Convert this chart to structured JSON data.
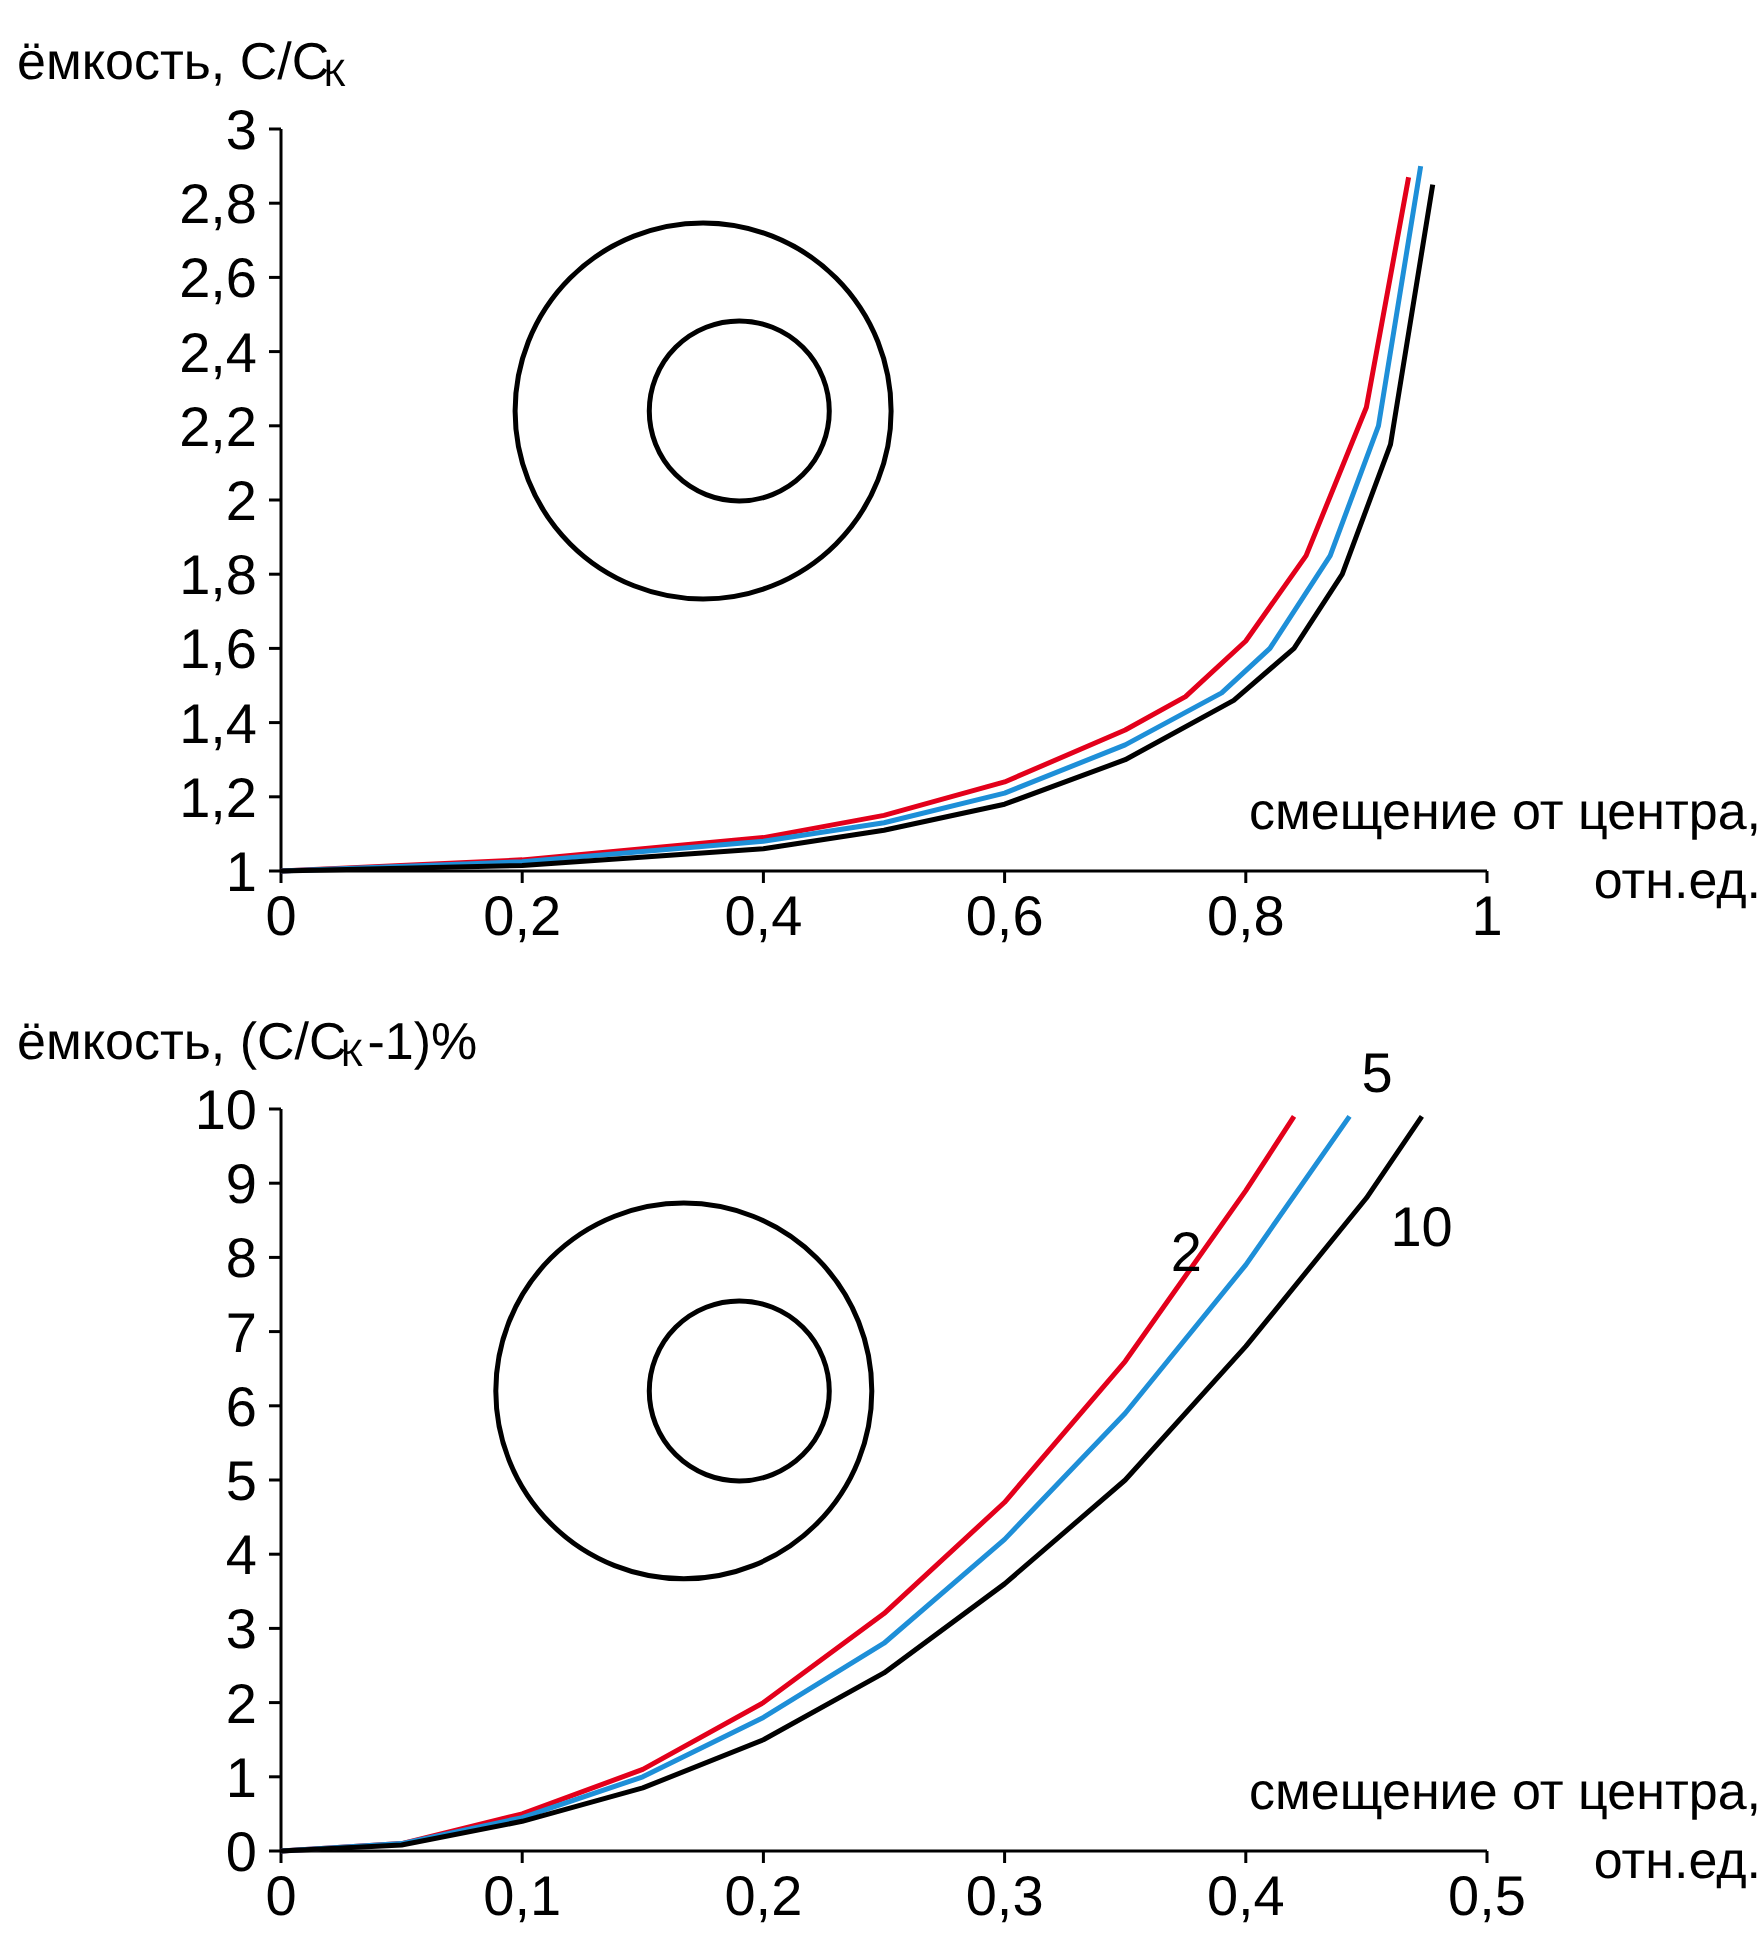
{
  "chart_data": [
    {
      "type": "line",
      "ylabel": "ёмкость, C/C$_{К}$",
      "xlabel": "смещение от центра,\nотн.ед.",
      "xlim": [
        0,
        1
      ],
      "ylim": [
        1,
        3
      ],
      "xticks": [
        0,
        {
          "value": 0.2,
          "label": "0,2"
        },
        {
          "value": 0.4,
          "label": "0,4"
        },
        {
          "value": 0.6,
          "label": "0,6"
        },
        {
          "value": 0.8,
          "label": "0,8"
        },
        1
      ],
      "yticks": [
        1,
        {
          "value": 1.2,
          "label": "1,2"
        },
        {
          "value": 1.4,
          "label": "1,4"
        },
        {
          "value": 1.6,
          "label": "1,6"
        },
        {
          "value": 1.8,
          "label": "1,8"
        },
        2,
        {
          "value": 2.2,
          "label": "2,2"
        },
        {
          "value": 2.4,
          "label": "2,4"
        },
        {
          "value": 2.6,
          "label": "2,6"
        },
        {
          "value": 2.8,
          "label": "2,8"
        },
        3
      ],
      "line_style": "solid",
      "series": [
        {
          "color": "#e3001b",
          "x": [
            0,
            0.2,
            0.4,
            0.5,
            0.6,
            0.7,
            0.75,
            0.8,
            0.85,
            0.9,
            0.935
          ],
          "values": [
            1,
            1.03,
            1.09,
            1.15,
            1.24,
            1.38,
            1.47,
            1.62,
            1.85,
            2.25,
            2.87
          ]
        },
        {
          "color": "#1e8fd8",
          "x": [
            0,
            0.2,
            0.4,
            0.5,
            0.6,
            0.7,
            0.78,
            0.82,
            0.87,
            0.91,
            0.945
          ],
          "values": [
            1,
            1.025,
            1.08,
            1.13,
            1.21,
            1.34,
            1.48,
            1.6,
            1.85,
            2.2,
            2.9
          ]
        },
        {
          "color": "#000000",
          "x": [
            0,
            0.2,
            0.4,
            0.5,
            0.6,
            0.7,
            0.79,
            0.84,
            0.88,
            0.92,
            0.955
          ],
          "values": [
            1,
            1.015,
            1.06,
            1.11,
            1.18,
            1.3,
            1.46,
            1.6,
            1.8,
            2.15,
            2.85
          ]
        }
      ]
    },
    {
      "type": "line",
      "ylabel": "ёмкость, (C/C$_{К}$-1)%",
      "xlabel": "смещение от центра,\nотн.ед.",
      "xlim": [
        0,
        0.5
      ],
      "ylim": [
        0,
        10
      ],
      "xticks": [
        0,
        {
          "value": 0.1,
          "label": "0,1"
        },
        {
          "value": 0.2,
          "label": "0,2"
        },
        {
          "value": 0.3,
          "label": "0,3"
        },
        {
          "value": 0.4,
          "label": "0,4"
        },
        {
          "value": 0.5,
          "label": "0,5"
        }
      ],
      "yticks": [
        0,
        1,
        2,
        3,
        4,
        5,
        6,
        7,
        8,
        9,
        10
      ],
      "line_style": "solid",
      "series": [
        {
          "name": "2",
          "color": "#e3001b",
          "x": [
            0,
            0.05,
            0.1,
            0.15,
            0.2,
            0.25,
            0.3,
            0.35,
            0.4,
            0.42
          ],
          "values": [
            0,
            0.1,
            0.5,
            1.1,
            2,
            3.2,
            4.7,
            6.6,
            8.9,
            9.9
          ]
        },
        {
          "name": "5",
          "color": "#1e8fd8",
          "x": [
            0,
            0.05,
            0.1,
            0.15,
            0.2,
            0.25,
            0.3,
            0.35,
            0.4,
            0.443
          ],
          "values": [
            0,
            0.1,
            0.45,
            1.0,
            1.8,
            2.8,
            4.2,
            5.9,
            7.9,
            9.9
          ]
        },
        {
          "name": "10",
          "color": "#000000",
          "x": [
            0,
            0.05,
            0.1,
            0.15,
            0.2,
            0.25,
            0.3,
            0.35,
            0.4,
            0.45,
            0.473
          ],
          "values": [
            0,
            0.08,
            0.4,
            0.85,
            1.5,
            2.4,
            3.6,
            5.0,
            6.8,
            8.8,
            9.9
          ]
        }
      ]
    }
  ]
}
